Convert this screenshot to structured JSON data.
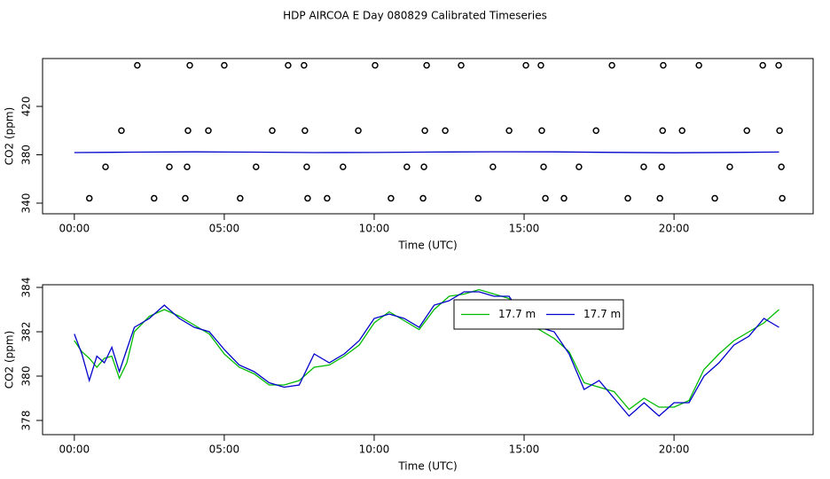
{
  "title": "HDP AIRCOA E  Day 080829  Calibrated Timeseries",
  "chart_data": [
    {
      "type": "scatter",
      "xlabel": "Time (UTC)",
      "ylabel": "CO2 (ppm)",
      "xlim": [
        -1.06,
        24.64
      ],
      "ylim": [
        331.2,
        459.6
      ],
      "xticks": [
        {
          "value": 0,
          "label": "00:00"
        },
        {
          "value": 5,
          "label": "05:00"
        },
        {
          "value": 10,
          "label": "10:00"
        },
        {
          "value": 15,
          "label": "15:00"
        },
        {
          "value": 20,
          "label": "20:00"
        }
      ],
      "yticks": [
        340,
        380,
        420
      ],
      "series": [
        {
          "style": "points",
          "color": "#000000",
          "x": [
            2.1,
            3.85,
            5.0,
            7.13,
            7.66,
            10.03,
            11.75,
            12.9,
            15.06,
            15.56,
            17.93,
            19.64,
            20.83,
            22.96,
            23.49,
            1.57,
            3.79,
            4.47,
            6.6,
            7.69,
            9.47,
            11.69,
            12.37,
            14.5,
            15.59,
            17.4,
            19.62,
            20.27,
            22.43,
            23.52,
            1.04,
            3.17,
            3.76,
            6.06,
            7.75,
            8.96,
            11.09,
            11.66,
            13.96,
            15.65,
            16.83,
            18.99,
            19.59,
            21.86,
            23.58,
            0.5,
            2.66,
            3.7,
            5.53,
            7.78,
            8.43,
            10.56,
            11.63,
            13.47,
            15.71,
            16.33,
            18.46,
            19.53,
            21.36,
            23.61
          ],
          "values": [
            454,
            454,
            454,
            454,
            454,
            454,
            454,
            454,
            454,
            454,
            454,
            454,
            454,
            454,
            454,
            400,
            400,
            400,
            400,
            400,
            400,
            400,
            400,
            400,
            400,
            400,
            400,
            400,
            400,
            400,
            370,
            370,
            370,
            370,
            370,
            370,
            370,
            370,
            370,
            370,
            370,
            370,
            370,
            370,
            370,
            344,
            344,
            344,
            344,
            344,
            344,
            344,
            344,
            344,
            344,
            344,
            344,
            344,
            344,
            344
          ]
        },
        {
          "style": "line",
          "color": "#0000cc",
          "x": [
            0,
            2,
            4,
            6,
            8,
            10,
            12,
            14,
            16,
            18,
            20,
            22,
            23.5
          ],
          "values": [
            381.8,
            382.2,
            382.4,
            382.2,
            381.8,
            381.9,
            382.3,
            382.5,
            382.4,
            382.0,
            381.7,
            382.0,
            382.3
          ]
        }
      ]
    },
    {
      "type": "line",
      "xlabel": "Time (UTC)",
      "ylabel": "CO2 (ppm)",
      "xlim": [
        -1.06,
        24.64
      ],
      "ylim": [
        377.36,
        384.12
      ],
      "xticks": [
        {
          "value": 0,
          "label": "00:00"
        },
        {
          "value": 5,
          "label": "05:00"
        },
        {
          "value": 10,
          "label": "10:00"
        },
        {
          "value": 15,
          "label": "15:00"
        },
        {
          "value": 20,
          "label": "20:00"
        }
      ],
      "yticks": [
        378,
        380,
        382,
        384
      ],
      "legend": "top",
      "x": [
        0,
        0.25,
        0.5,
        0.75,
        1,
        1.25,
        1.5,
        1.75,
        2,
        2.5,
        3,
        3.5,
        4,
        4.5,
        5,
        5.5,
        6,
        6.5,
        7,
        7.5,
        8,
        8.5,
        9,
        9.5,
        10,
        10.5,
        11,
        11.5,
        12,
        12.5,
        13,
        13.5,
        14,
        14.5,
        15,
        15.5,
        16,
        16.5,
        17,
        17.5,
        18,
        18.5,
        19,
        19.5,
        20,
        20.5,
        21,
        21.5,
        22,
        22.5,
        23,
        23.5
      ],
      "series": [
        {
          "name": "17.7 m",
          "style": "line",
          "color": "#00bb00",
          "values": [
            381.6,
            381.1,
            380.8,
            380.4,
            380.8,
            380.9,
            379.9,
            380.6,
            382.0,
            382.7,
            383.0,
            382.7,
            382.3,
            381.9,
            381.0,
            380.4,
            380.1,
            379.6,
            379.6,
            379.8,
            380.4,
            380.5,
            380.9,
            381.4,
            382.4,
            382.9,
            382.5,
            382.1,
            383.0,
            383.6,
            383.7,
            383.9,
            383.7,
            383.5,
            382.4,
            382.1,
            381.7,
            381.1,
            379.7,
            379.5,
            379.3,
            378.5,
            379.0,
            378.6,
            378.6,
            378.9,
            380.3,
            381.0,
            381.6,
            382.0,
            382.4,
            383.0
          ]
        },
        {
          "name": "17.7 m",
          "style": "line",
          "color": "#0000cc",
          "values": [
            381.9,
            381.0,
            379.8,
            380.9,
            380.6,
            381.3,
            380.2,
            381.2,
            382.2,
            382.6,
            383.2,
            382.6,
            382.2,
            382.0,
            381.2,
            380.5,
            380.2,
            379.7,
            379.5,
            379.6,
            381.0,
            380.6,
            381.0,
            381.6,
            382.6,
            382.8,
            382.6,
            382.2,
            383.2,
            383.4,
            383.8,
            383.8,
            383.6,
            383.6,
            382.6,
            382.2,
            382.0,
            381.0,
            379.4,
            379.8,
            379.0,
            378.2,
            378.8,
            378.2,
            378.8,
            378.8,
            380.0,
            380.6,
            381.4,
            381.8,
            382.6,
            382.2
          ]
        }
      ]
    }
  ]
}
